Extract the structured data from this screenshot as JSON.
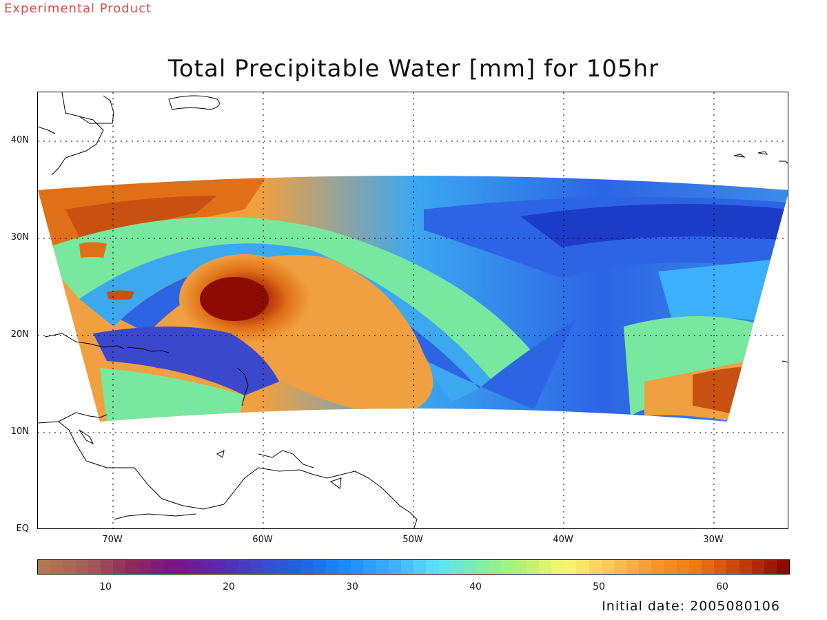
{
  "banner": "Experimental Product",
  "title": "Total Precipitable Water [mm] for 105hr",
  "footer": "Initial date: 2005080106",
  "lat_labels": [
    "40N",
    "30N",
    "20N",
    "10N",
    "EQ"
  ],
  "lon_labels": [
    "70W",
    "60W",
    "50W",
    "40W",
    "30W"
  ],
  "colorbar": {
    "ticks": [
      "10",
      "20",
      "30",
      "40",
      "50",
      "60"
    ],
    "range": [
      5,
      66
    ],
    "colors": [
      "#b07850",
      "#a06058",
      "#902858",
      "#7a1488",
      "#5a28b0",
      "#3c48cc",
      "#1c68e4",
      "#1a8cfc",
      "#3cb0fc",
      "#5ce0f8",
      "#7cf0a8",
      "#b8f070",
      "#f8f870",
      "#f8c858",
      "#f89830",
      "#f07810",
      "#c84008",
      "#8c0c04"
    ]
  },
  "map": {
    "lon_range": [
      -75,
      -25
    ],
    "lat_range": [
      0,
      45
    ],
    "field_colors": {
      "dry_dark": "#1c3cc8",
      "dry": "#2c64e4",
      "mid": "#3ca8f0",
      "moist": "#78e8a0",
      "wet": "#f0a040",
      "very_wet": "#e07018",
      "core": "#8c0c04"
    }
  }
}
